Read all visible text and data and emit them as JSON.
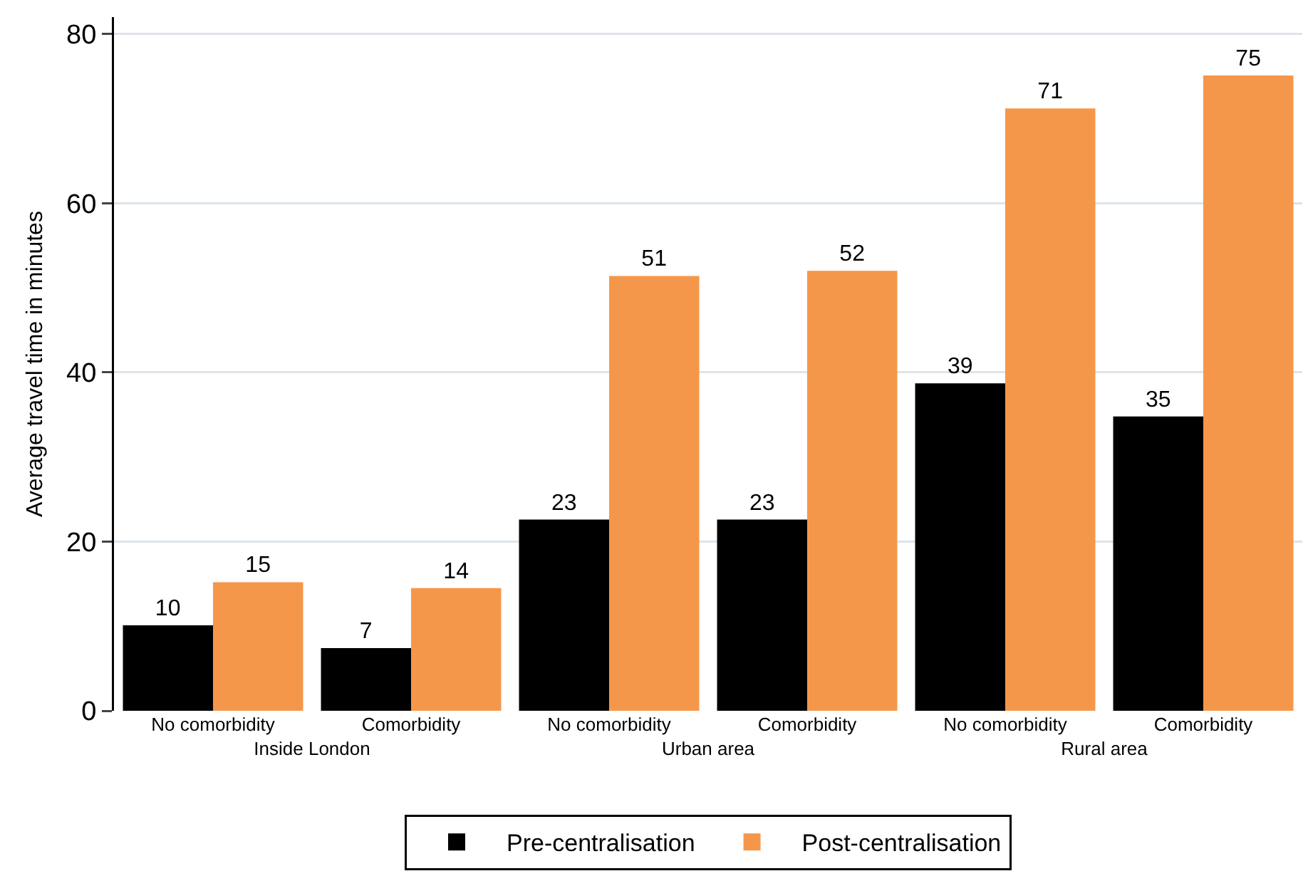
{
  "chart_data": {
    "type": "bar",
    "ylabel": "Average travel time in minutes",
    "categories": [
      "No comorbidity",
      "Comorbidity",
      "No comorbidity",
      "Comorbidity",
      "No comorbidity",
      "Comorbidity"
    ],
    "series": [
      {
        "name": "Pre-centralisation",
        "color": "#000000",
        "values": [
          10.1,
          7.4,
          22.6,
          22.6,
          38.7,
          34.8
        ],
        "value_labels": [
          "10",
          "7",
          "23",
          "23",
          "39",
          "35"
        ]
      },
      {
        "name": "Post-centralisation",
        "color": "#f5974a",
        "values": [
          15.2,
          14.5,
          51.4,
          52,
          71.2,
          75.1
        ],
        "value_labels": [
          "15",
          "14",
          "51",
          "52",
          "71",
          "75"
        ]
      }
    ],
    "annotations": [
      "Inside London",
      "Urban area",
      "Rural area"
    ],
    "ylim": [
      0,
      82
    ],
    "yticks": [
      0,
      20,
      40,
      60,
      80
    ],
    "grid": "y",
    "legend": "bottom"
  }
}
